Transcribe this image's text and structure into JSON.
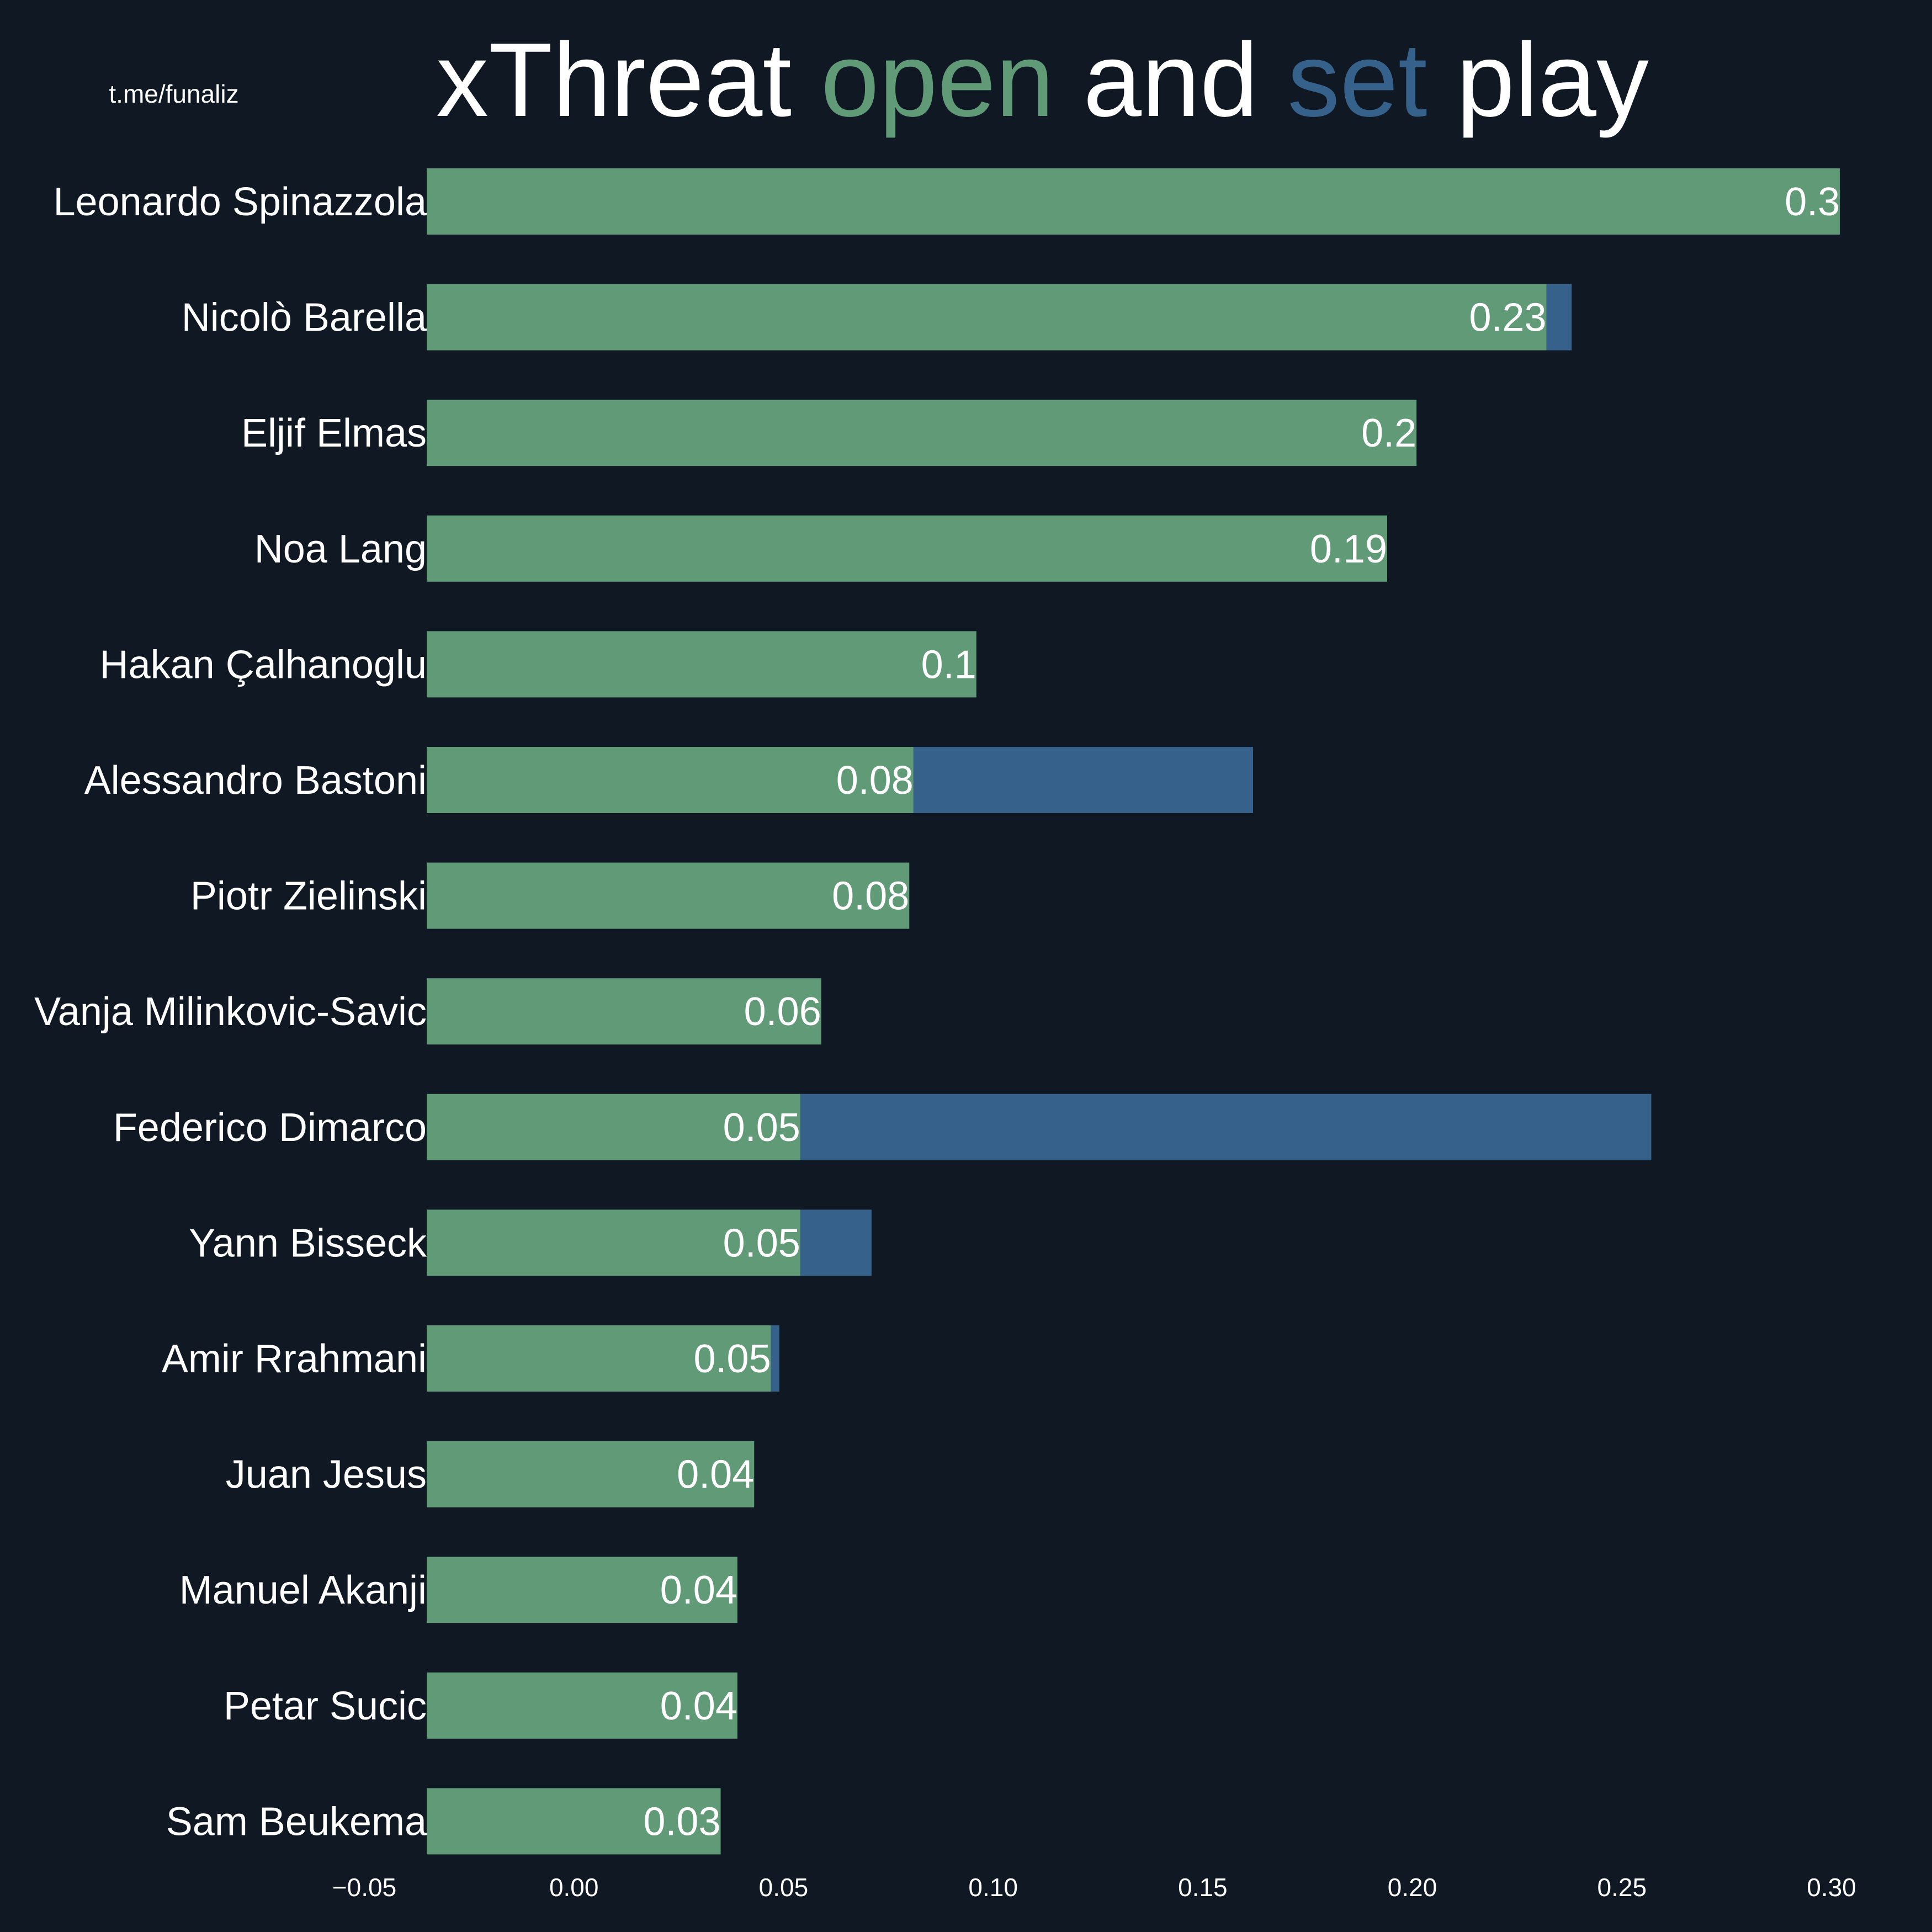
{
  "credit": "t.me/funaliz",
  "title": {
    "parts": [
      {
        "text": "xThreat ",
        "color": "#ffffff"
      },
      {
        "text": "open",
        "color": "#619a77"
      },
      {
        "text": " and ",
        "color": "#ffffff"
      },
      {
        "text": "set",
        "color": "#36618a"
      },
      {
        "text": " play",
        "color": "#ffffff"
      }
    ]
  },
  "colors": {
    "background": "#0f1823",
    "open_play": "#619a77",
    "set_play": "#36618a",
    "text": "#ffffff"
  },
  "chart_data": {
    "type": "bar",
    "orientation": "horizontal",
    "stacked": true,
    "title": "xThreat open and set play",
    "xlabel": "",
    "ylabel": "",
    "xlim": [
      -0.05,
      0.3
    ],
    "x_ticks": [
      "−0.05",
      "0.00",
      "0.05",
      "0.10",
      "0.15",
      "0.20",
      "0.25",
      "0.30"
    ],
    "x_tick_values": [
      -0.05,
      0.0,
      0.05,
      0.1,
      0.15,
      0.2,
      0.25,
      0.3
    ],
    "grid": false,
    "categories": [
      "Leonardo Spinazzola",
      "Nicolò Barella",
      "Eljif Elmas",
      "Noa Lang",
      "Hakan Çalhanoglu",
      "Alessandro Bastoni",
      "Piotr Zielinski",
      "Vanja Milinkovic-Savic",
      "Federico Dimarco",
      "Yann Bisseck",
      "Amir Rrahmani",
      "Juan Jesus",
      "Manuel Akanji",
      "Petar Sucic",
      "Sam Beukema"
    ],
    "series": [
      {
        "name": "open",
        "values": [
          0.302,
          0.232,
          0.201,
          0.194,
          0.096,
          0.081,
          0.08,
          0.059,
          0.054,
          0.054,
          0.047,
          0.043,
          0.039,
          0.039,
          0.035
        ],
        "data_labels": [
          "0.3",
          "0.23",
          "0.2",
          "0.19",
          "0.1",
          "0.08",
          "0.08",
          "0.06",
          "0.05",
          "0.05",
          "0.05",
          "0.04",
          "0.04",
          "0.04",
          "0.03"
        ]
      },
      {
        "name": "set",
        "values": [
          0.0,
          0.006,
          0.0,
          0.0,
          0.0,
          0.081,
          0.0,
          0.0,
          0.203,
          0.017,
          0.002,
          0.0,
          0.0,
          0.0,
          0.0
        ]
      }
    ]
  }
}
